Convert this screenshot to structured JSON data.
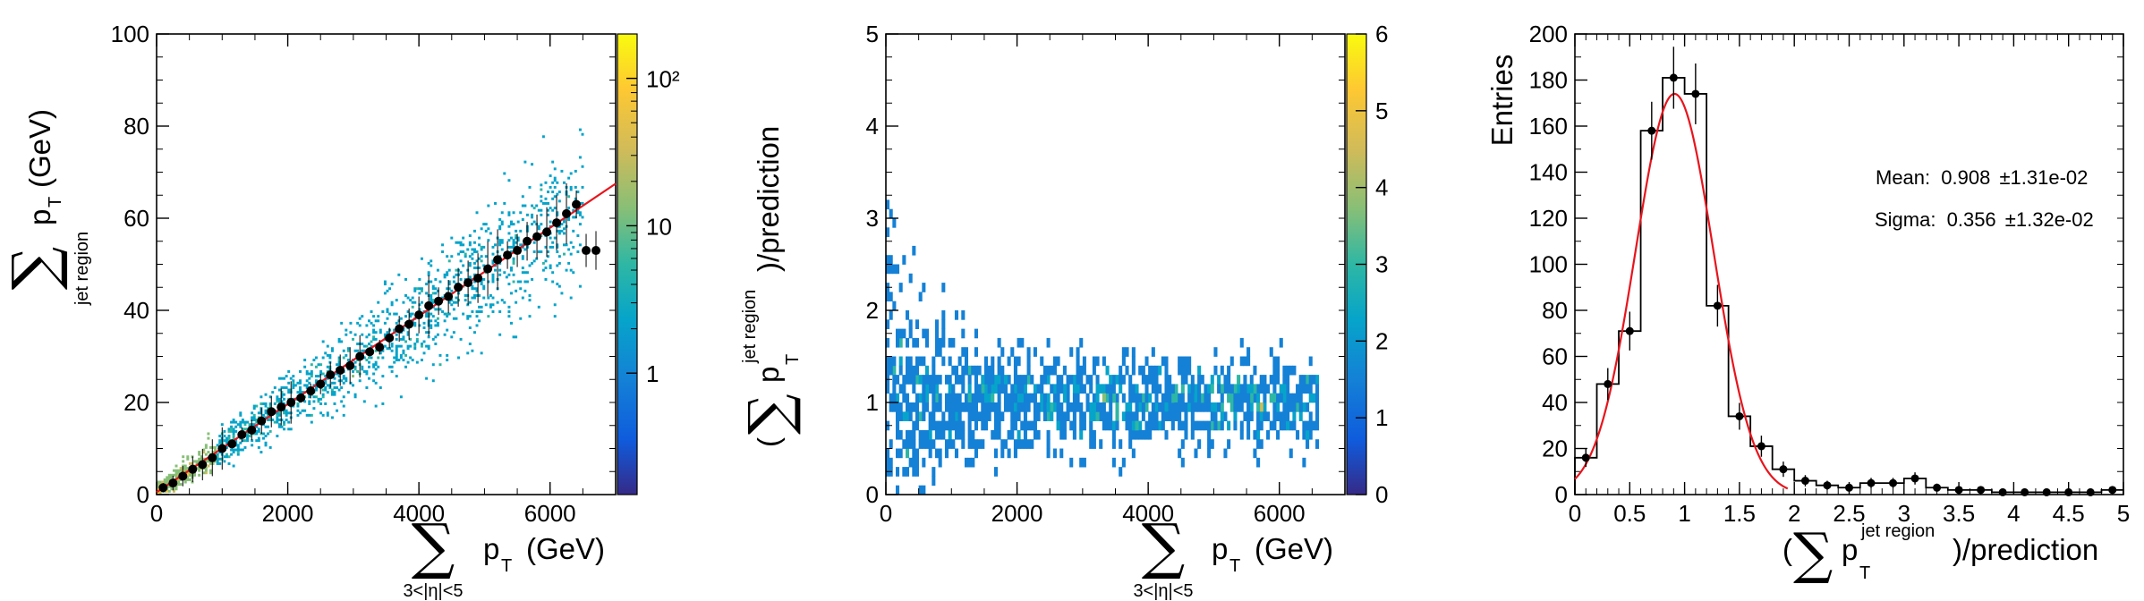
{
  "chart_data": [
    {
      "type": "heatmap",
      "overlay": "scatter + line",
      "x_ticks": [
        "0",
        "2000",
        "4000",
        "6000"
      ],
      "y_ticks": [
        "0",
        "20",
        "40",
        "60",
        "80",
        "100"
      ],
      "xlabel_main": "p",
      "xlabel_sub": "T",
      "xlabel_unit": "(GeV)",
      "xlabel_sum_index": "3<|η|<5",
      "ylabel_main": "p",
      "ylabel_sub": "T",
      "ylabel_unit": "(GeV)",
      "ylabel_sum_index": "jet region",
      "xlim": [
        0,
        7000
      ],
      "ylim": [
        0,
        100
      ],
      "colorbar": {
        "scale": "log",
        "labels": [
          "1",
          "10",
          "10²"
        ],
        "values": [
          1,
          10,
          100
        ],
        "range": [
          0.15,
          200
        ]
      },
      "fit_line": {
        "color": "#e8141c",
        "x": [
          0,
          7000
        ],
        "y": [
          0.5,
          67.5
        ]
      },
      "profile_points": {
        "x": [
          100,
          250,
          400,
          550,
          700,
          850,
          1000,
          1150,
          1300,
          1450,
          1600,
          1750,
          1900,
          2050,
          2200,
          2350,
          2500,
          2650,
          2800,
          2950,
          3100,
          3250,
          3400,
          3550,
          3700,
          3850,
          4000,
          4150,
          4300,
          4450,
          4600,
          4750,
          4900,
          5050,
          5200,
          5350,
          5500,
          5650,
          5800,
          5950,
          6100,
          6250,
          6400,
          6550,
          6700
        ],
        "y": [
          1.5,
          2.5,
          4,
          5.5,
          6.5,
          8,
          10,
          11,
          13,
          14,
          16,
          18,
          19,
          20,
          21,
          22.5,
          24,
          26,
          27,
          28,
          30,
          31,
          32,
          34,
          36,
          37,
          39,
          41,
          42,
          43,
          45,
          46,
          47,
          49,
          51,
          52,
          53,
          55,
          56,
          57,
          59,
          61,
          63,
          53,
          53
        ]
      }
    },
    {
      "type": "heatmap",
      "x_ticks": [
        "0",
        "2000",
        "4000",
        "6000"
      ],
      "y_ticks": [
        "0",
        "1",
        "2",
        "3",
        "4",
        "5"
      ],
      "xlabel_main": "p",
      "xlabel_sub": "T",
      "xlabel_unit": "(GeV)",
      "xlabel_sum_index": "3<|η|<5",
      "ylabel_open": "(",
      "ylabel_main": "p",
      "ylabel_sub": "T",
      "ylabel_sup": "jet region",
      "ylabel_tail": ")/prediction",
      "xlim": [
        0,
        7000
      ],
      "ylim": [
        0,
        5
      ],
      "colorbar": {
        "scale": "linear",
        "labels": [
          "0",
          "1",
          "2",
          "3",
          "4",
          "5",
          "6"
        ],
        "range": [
          0,
          6
        ]
      }
    },
    {
      "type": "histogram",
      "x_ticks": [
        "0",
        "0.5",
        "1",
        "1.5",
        "2",
        "2.5",
        "3",
        "3.5",
        "4",
        "4.5",
        "5"
      ],
      "y_ticks": [
        "0",
        "20",
        "40",
        "60",
        "80",
        "100",
        "120",
        "140",
        "160",
        "180",
        "200"
      ],
      "ylabel": "Entries",
      "xlabel_open": "(",
      "xlabel_main": "p",
      "xlabel_sub": "T",
      "xlabel_sup": "jet region",
      "xlabel_tail": ")/prediction",
      "xlim": [
        0,
        5
      ],
      "ylim": [
        0,
        200
      ],
      "bin_width": 0.2,
      "bin_edges_start": 0,
      "values": [
        16,
        48,
        71,
        158,
        181,
        174,
        82,
        34,
        21,
        11,
        6,
        4,
        3,
        5,
        5,
        7,
        3,
        2,
        2,
        1,
        1,
        1,
        1,
        1,
        2
      ],
      "gauss_fit": {
        "color": "#e8141c",
        "amplitude": 174,
        "mean": 0.908,
        "sigma": 0.356,
        "range": [
          0,
          1.95
        ]
      },
      "stats": [
        {
          "label": "Mean:",
          "value": "0.908",
          "error": "1.31e-02"
        },
        {
          "label": "Sigma:",
          "value": "0.356",
          "error": "1.32e-02"
        }
      ]
    }
  ]
}
